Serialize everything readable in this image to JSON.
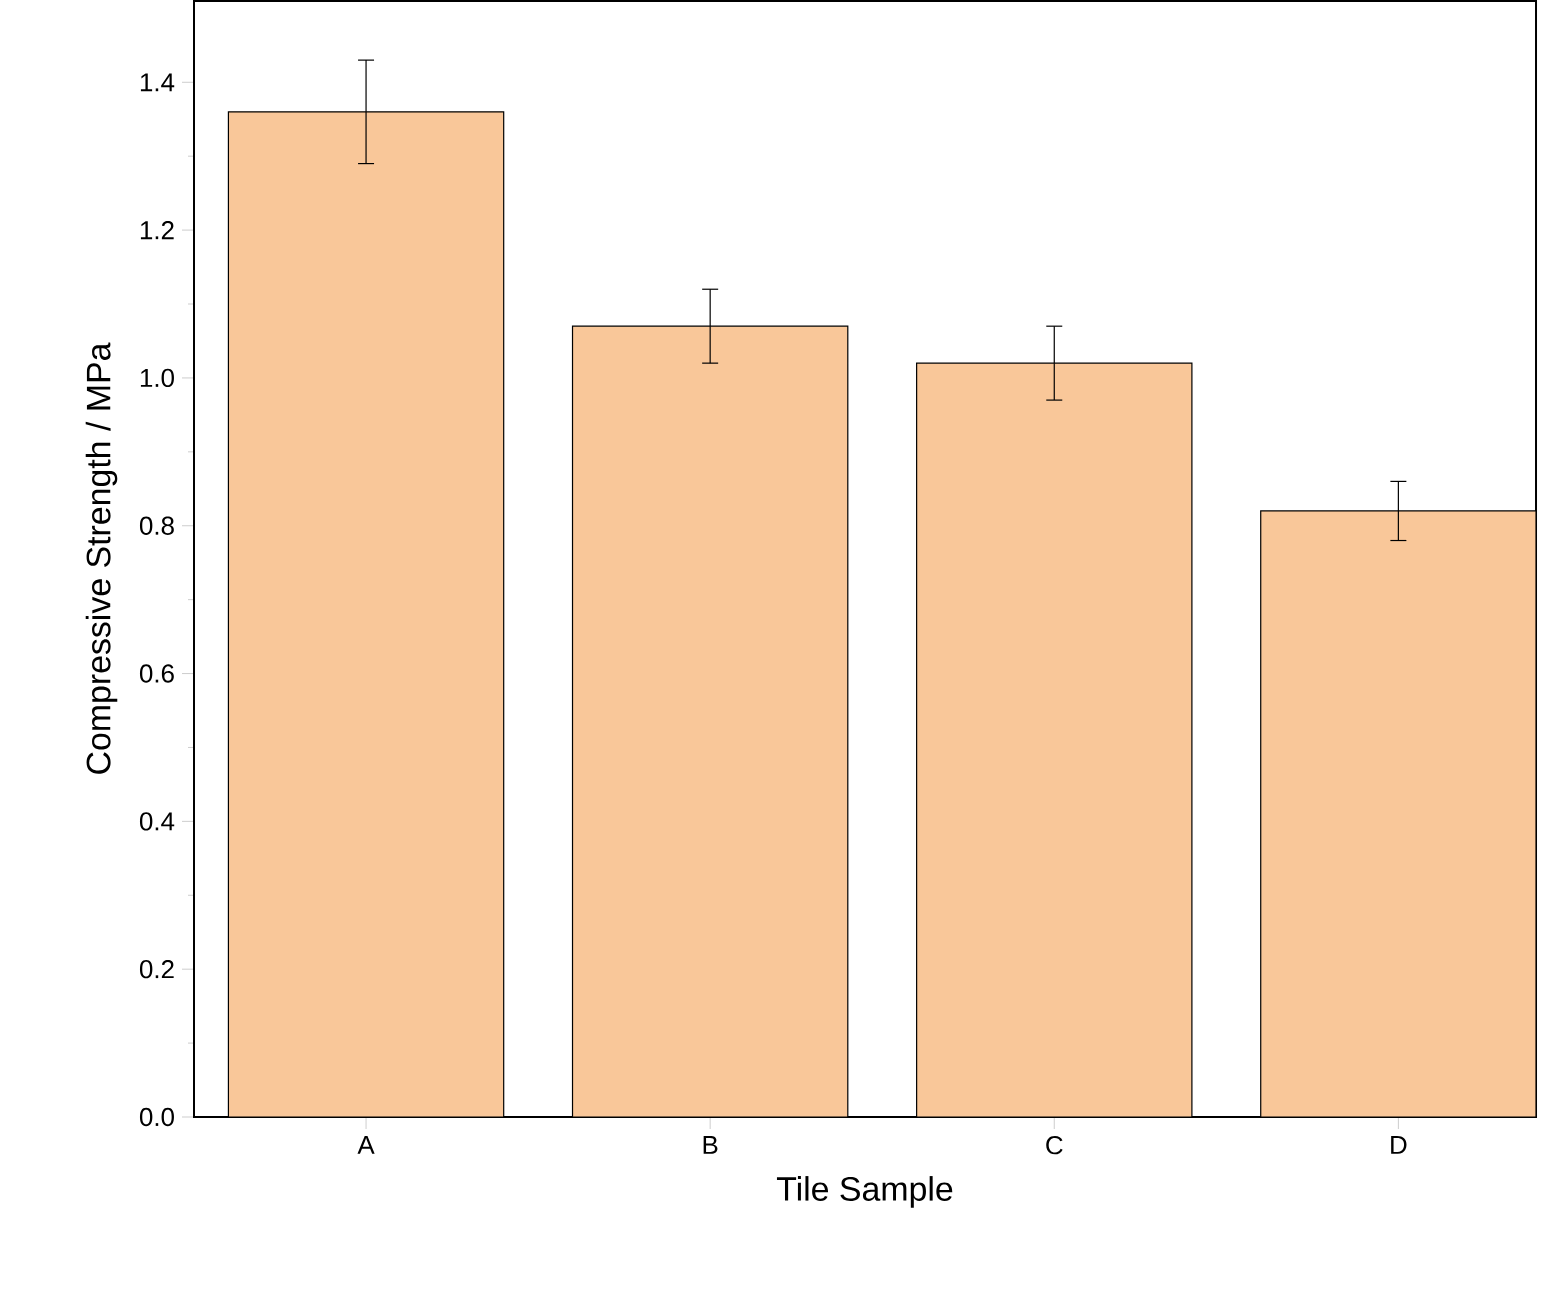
{
  "chart_data": {
    "type": "bar",
    "xlabel": "Tile Sample",
    "ylabel": "Compressive Strength / MPa",
    "categories": [
      "A",
      "B",
      "C",
      "D"
    ],
    "values": [
      1.36,
      1.07,
      1.02,
      0.82
    ],
    "errors": [
      0.07,
      0.05,
      0.05,
      0.04
    ],
    "color": "#f9c799",
    "ylim": [
      0,
      1.51
    ],
    "yticks": [
      {
        "value": 0,
        "label": "0.0"
      },
      0.2,
      0.4,
      0.6,
      0.8,
      {
        "value": 1,
        "label": "1.0"
      },
      1.2,
      1.4
    ],
    "grid": false
  }
}
